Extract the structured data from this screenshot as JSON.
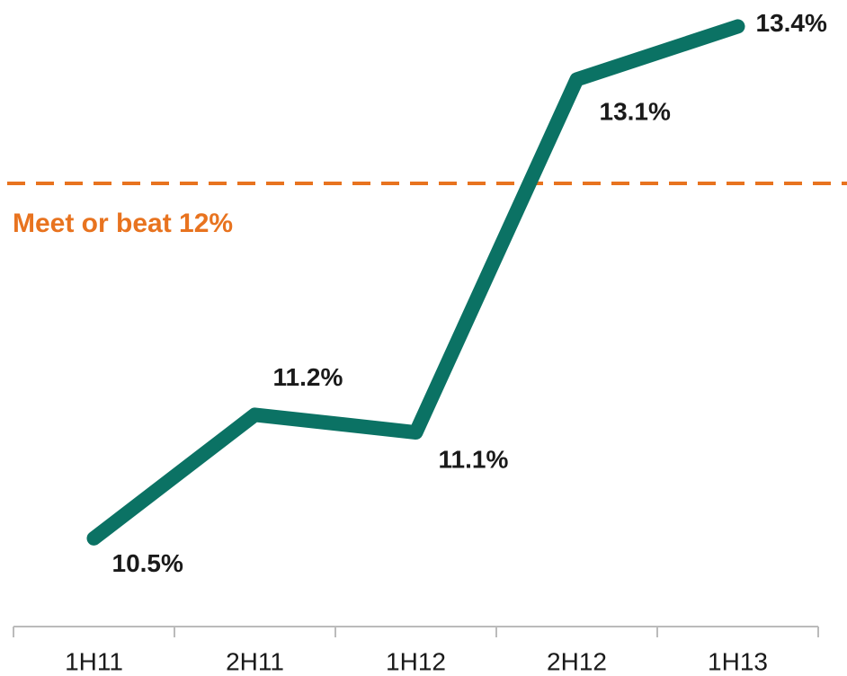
{
  "chart_data": {
    "type": "line",
    "categories": [
      "1H11",
      "2H11",
      "1H12",
      "2H12",
      "1H13"
    ],
    "series": [
      {
        "color": "#0b7264",
        "values": [
          10.5,
          11.2,
          11.1,
          13.1,
          13.4
        ],
        "value_labels": [
          "10.5%",
          "11.2%",
          "11.1%",
          "13.1%",
          "13.4%"
        ]
      }
    ],
    "ylim": [
      10,
      13.55
    ],
    "annotation": "Meet or beat 12%",
    "reference_line_color": "#e8731f"
  }
}
